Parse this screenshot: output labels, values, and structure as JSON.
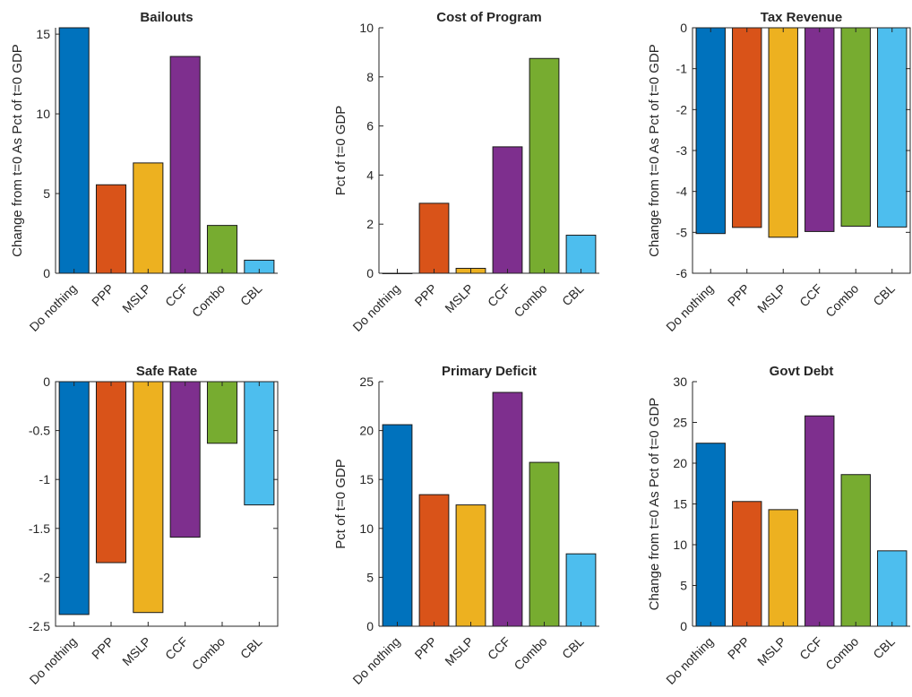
{
  "colors": {
    "Do nothing": "#0072BD",
    "PPP": "#D95319",
    "MSLP": "#EDB120",
    "CCF": "#7E2F8E",
    "Combo": "#77AC30",
    "CBL": "#4DBEEE"
  },
  "chart_data": [
    {
      "type": "bar",
      "title": "Bailouts",
      "ylabel": "Change from t=0 As Pct of t=0 GDP",
      "categories": [
        "Do nothing",
        "PPP",
        "MSLP",
        "CCF",
        "Combo",
        "CBL"
      ],
      "values": [
        15.4,
        5.55,
        6.92,
        13.6,
        3.0,
        0.82
      ],
      "ylim": [
        0,
        15.4
      ],
      "yticks": [
        0,
        5,
        10,
        15
      ],
      "ytick_labels": [
        "0",
        "5",
        "10",
        "15"
      ],
      "box": false
    },
    {
      "type": "bar",
      "title": "Cost of Program",
      "ylabel": "Pct of t=0 GDP",
      "categories": [
        "Do nothing",
        "PPP",
        "MSLP",
        "CCF",
        "Combo",
        "CBL"
      ],
      "values": [
        0.0,
        2.85,
        0.2,
        5.15,
        8.75,
        1.55
      ],
      "ylim": [
        0,
        10
      ],
      "yticks": [
        0,
        2,
        4,
        6,
        8,
        10
      ],
      "ytick_labels": [
        "0",
        "2",
        "4",
        "6",
        "8",
        "10"
      ],
      "box": false
    },
    {
      "type": "bar",
      "title": "Tax Revenue",
      "ylabel": "Change from t=0 As Pct of t=0 GDP",
      "categories": [
        "Do nothing",
        "PPP",
        "MSLP",
        "CCF",
        "Combo",
        "CBL"
      ],
      "values": [
        -5.03,
        -4.88,
        -5.12,
        -4.98,
        -4.85,
        -4.87
      ],
      "ylim": [
        -6,
        0
      ],
      "yticks": [
        -6,
        -5,
        -4,
        -3,
        -2,
        -1,
        0
      ],
      "ytick_labels": [
        "-6",
        "-5",
        "-4",
        "-3",
        "-2",
        "-1",
        "0"
      ],
      "box": true
    },
    {
      "type": "bar",
      "title": "Safe Rate",
      "ylabel": "",
      "categories": [
        "Do nothing",
        "PPP",
        "MSLP",
        "CCF",
        "Combo",
        "CBL"
      ],
      "values": [
        -2.38,
        -1.85,
        -2.36,
        -1.59,
        -0.63,
        -1.26
      ],
      "ylim": [
        -2.5,
        0
      ],
      "yticks": [
        -2.5,
        -2,
        -1.5,
        -1,
        -0.5,
        0
      ],
      "ytick_labels": [
        "-2.5",
        "-2",
        "-1.5",
        "-1",
        "-0.5",
        "0"
      ],
      "box": true
    },
    {
      "type": "bar",
      "title": "Primary Deficit",
      "ylabel": "Pct of t=0 GDP",
      "categories": [
        "Do nothing",
        "PPP",
        "MSLP",
        "CCF",
        "Combo",
        "CBL"
      ],
      "values": [
        20.6,
        13.45,
        12.4,
        23.9,
        16.75,
        7.4
      ],
      "ylim": [
        0,
        25
      ],
      "yticks": [
        0,
        5,
        10,
        15,
        20,
        25
      ],
      "ytick_labels": [
        "0",
        "5",
        "10",
        "15",
        "20",
        "25"
      ],
      "box": false
    },
    {
      "type": "bar",
      "title": "Govt Debt",
      "ylabel": "Change from t=0 As Pct of t=0 GDP",
      "categories": [
        "Do nothing",
        "PPP",
        "MSLP",
        "CCF",
        "Combo",
        "CBL"
      ],
      "values": [
        22.45,
        15.3,
        14.3,
        25.8,
        18.6,
        9.25
      ],
      "ylim": [
        0,
        30
      ],
      "yticks": [
        0,
        5,
        10,
        15,
        20,
        25,
        30
      ],
      "ytick_labels": [
        "0",
        "5",
        "10",
        "15",
        "20",
        "25",
        "30"
      ],
      "box": false
    }
  ]
}
